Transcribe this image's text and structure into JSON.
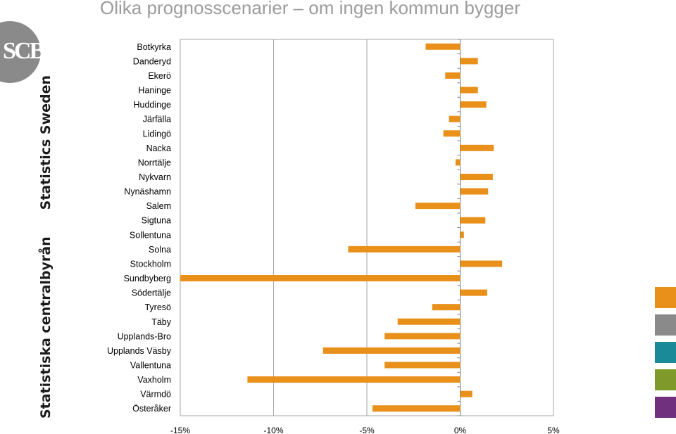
{
  "title": "Olika prognosscenarier – om ingen kommun bygger",
  "logo_text": "SCB",
  "side_text": {
    "line1": "Statistiska centralbyrån",
    "line2": "Statistics Sweden"
  },
  "swatches": [
    "#e8901a",
    "#8a8a8a",
    "#1a8a99",
    "#7f9a2a",
    "#70307e"
  ],
  "colors": {
    "bar": "#e8901a",
    "grid": "#a6a6a6"
  },
  "chart_data": {
    "type": "bar",
    "orientation": "horizontal",
    "categories": [
      "Botkyrka",
      "Danderyd",
      "Ekerö",
      "Haninge",
      "Huddinge",
      "Järfälla",
      "Lidingö",
      "Nacka",
      "Norrtälje",
      "Nykvarn",
      "Nynäshamn",
      "Salem",
      "Sigtuna",
      "Sollentuna",
      "Solna",
      "Stockholm",
      "Sundbyberg",
      "Södertälje",
      "Tyresö",
      "Täby",
      "Upplands-Bro",
      "Upplands Väsby",
      "Vallentuna",
      "Vaxholm",
      "Värmdö",
      "Österåker"
    ],
    "values": [
      -1.85,
      0.95,
      -0.8,
      0.95,
      1.4,
      -0.6,
      -0.9,
      1.8,
      -0.25,
      1.75,
      1.5,
      -2.4,
      1.35,
      0.2,
      -6.0,
      2.25,
      -15.0,
      1.45,
      -1.5,
      -3.35,
      -4.05,
      -7.35,
      -4.05,
      -11.4,
      0.65,
      -4.7
    ],
    "xlim": [
      -15,
      5
    ],
    "xticks": [
      -15,
      -10,
      -5,
      0,
      5
    ],
    "xtick_labels": [
      "-15%",
      "-10%",
      "-5%",
      "0%",
      "5%"
    ],
    "grid": true
  }
}
